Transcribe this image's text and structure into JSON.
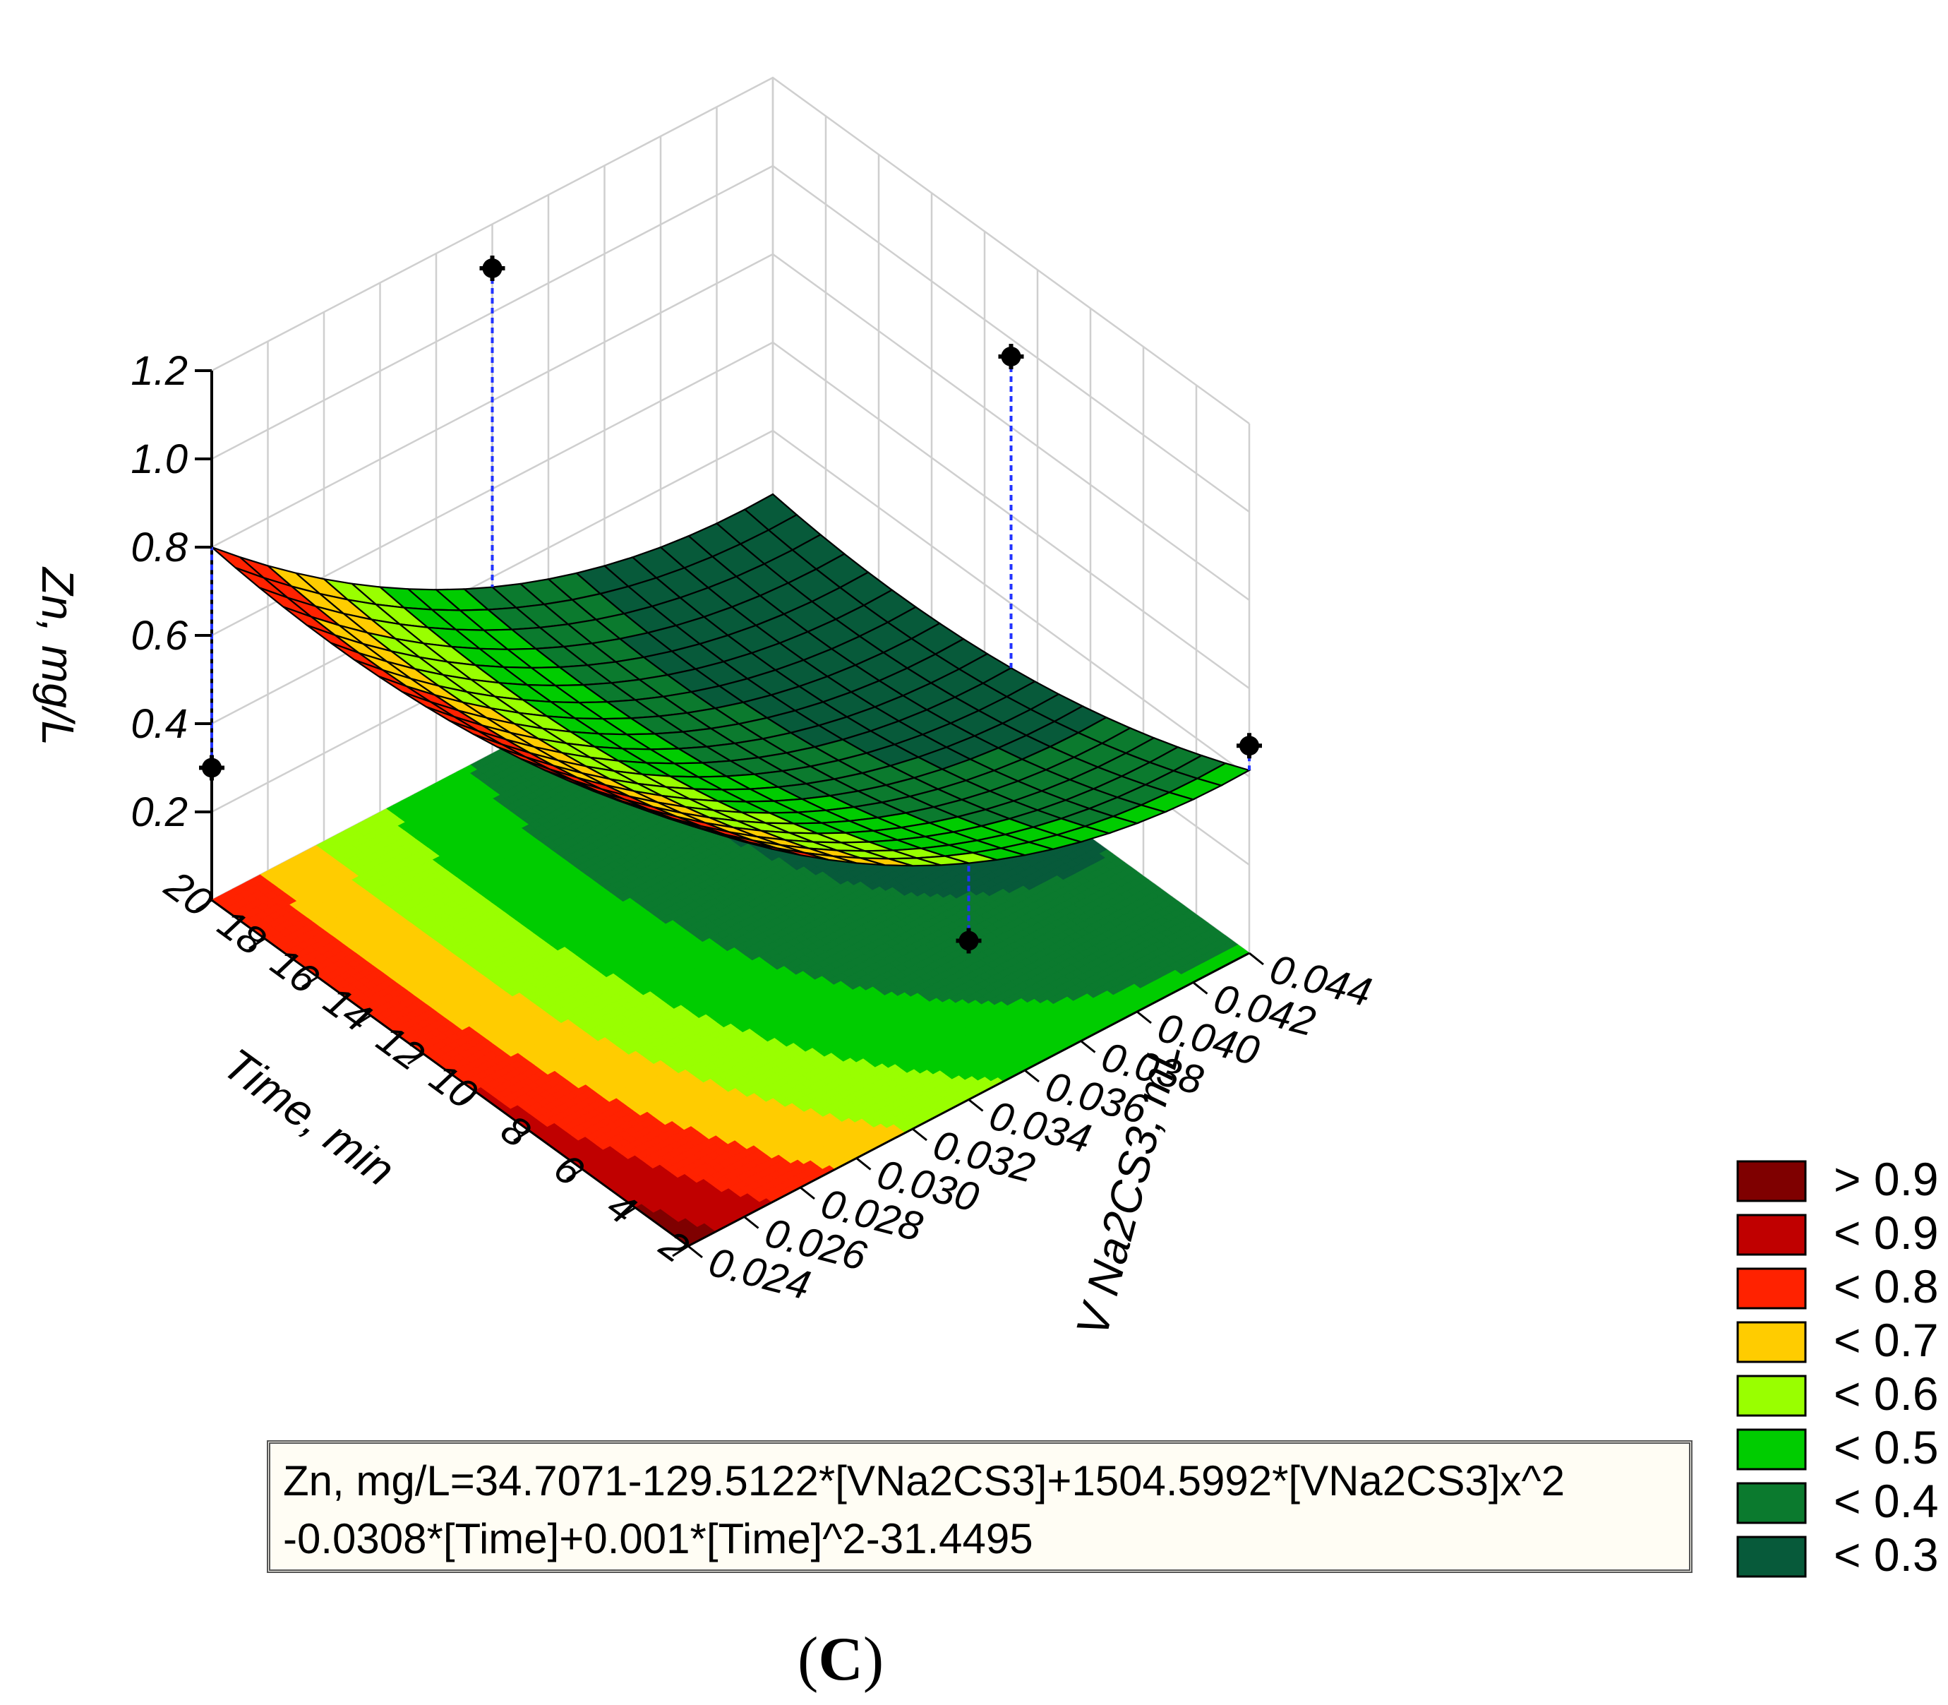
{
  "chart_data": {
    "type": "surface",
    "zlabel": "Zn, mg/L",
    "xlabel": "V Na2CS3, mL",
    "ylabel": "Time, min",
    "x_ticks": [
      "0.024",
      "0.026",
      "0.028",
      "0.030",
      "0.032",
      "0.034",
      "0.036",
      "0.038",
      "0.040",
      "0.042",
      "0.044"
    ],
    "y_ticks": [
      "2",
      "4",
      "6",
      "8",
      "10",
      "12",
      "14",
      "16",
      "18",
      "20"
    ],
    "z_ticks": [
      "0.2",
      "0.4",
      "0.6",
      "0.8",
      "1.0",
      "1.2"
    ],
    "xlim": [
      0.024,
      0.044
    ],
    "ylim": [
      2,
      20
    ],
    "zlim": [
      0.0,
      1.2
    ],
    "grid": true,
    "equation": {
      "line1": "Zn, mg/L=34.7071-129.5122*[VNa2CS3]+1504.5992*[VNa2CS3]x^2",
      "line2": "-0.0308*[Time]+0.001*[Time]^2-31.4495"
    },
    "model": {
      "c0": 34.7071,
      "cV": -129.5122,
      "cV2": 1504.5992,
      "cT": -0.0308,
      "cT2": 0.001,
      "offset": -31.4495
    },
    "points": [
      {
        "v": 0.024,
        "t": 20,
        "z": 0.3
      },
      {
        "v": 0.034,
        "t": 20,
        "z": 1.1
      },
      {
        "v": 0.044,
        "t": 11,
        "z": 0.96
      },
      {
        "v": 0.044,
        "t": 2,
        "z": 0.47
      },
      {
        "v": 0.034,
        "t": 2,
        "z": 0.36
      }
    ],
    "legend": [
      {
        "label": "> 0.9",
        "color": "#7f0000"
      },
      {
        "label": "< 0.9",
        "color": "#c00000"
      },
      {
        "label": "< 0.8",
        "color": "#ff2200"
      },
      {
        "label": "< 0.7",
        "color": "#ffcc00"
      },
      {
        "label": "< 0.6",
        "color": "#99ff00"
      },
      {
        "label": "< 0.5",
        "color": "#00cc00"
      },
      {
        "label": "< 0.4",
        "color": "#0b7a2e"
      },
      {
        "label": "< 0.3",
        "color": "#075a3a"
      }
    ],
    "legend_position": "bottom-right"
  },
  "panel_label": "C"
}
